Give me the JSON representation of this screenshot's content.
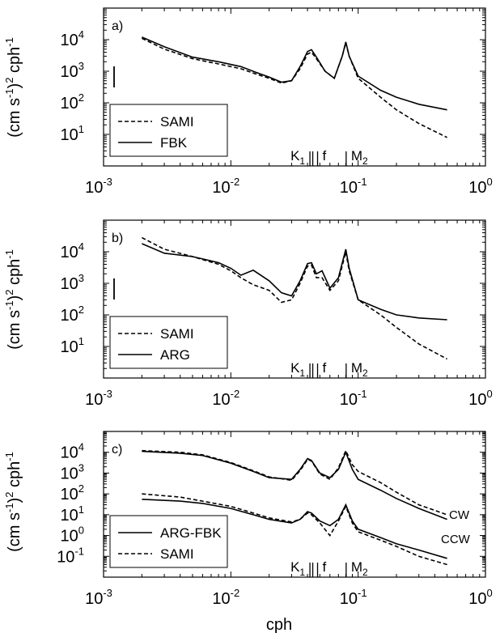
{
  "figure": {
    "xlabel": "cph",
    "ylabel_main": "(cm s",
    "ylabel_sup1": "-1",
    "ylabel_mid": ")",
    "ylabel_sup2": "2",
    "ylabel_end": " cph",
    "ylabel_sup3": "-1"
  },
  "chart_data": [
    {
      "panel": "a)",
      "type": "line",
      "xscale": "log",
      "yscale": "log",
      "xlim": [
        0.001,
        1
      ],
      "ylim_decades": [
        0,
        5
      ],
      "x_ticks": [
        "10",
        "10",
        "10",
        "10"
      ],
      "x_tick_exps": [
        "-3",
        "-2",
        "-1",
        "0"
      ],
      "y_ticks": [
        "10",
        "10",
        "10",
        "10"
      ],
      "y_tick_exps": [
        "1",
        "2",
        "3",
        "4"
      ],
      "legend": [
        {
          "label": "SAMI",
          "style": "dashed"
        },
        {
          "label": "FBK",
          "style": "solid"
        }
      ],
      "tidal_labels": [
        "K",
        "1",
        "f",
        "M",
        "2"
      ],
      "series": [
        {
          "name": "SAMI",
          "style": "dashed",
          "x": [
            0.002,
            0.003,
            0.005,
            0.008,
            0.012,
            0.016,
            0.02,
            0.025,
            0.03,
            0.035,
            0.04,
            0.043,
            0.047,
            0.055,
            0.065,
            0.075,
            0.08,
            0.085,
            0.1,
            0.15,
            0.2,
            0.3,
            0.5
          ],
          "y": [
            11000,
            5000,
            2500,
            1700,
            1200,
            800,
            600,
            420,
            500,
            1200,
            3500,
            4000,
            2500,
            1000,
            600,
            3000,
            8000,
            3000,
            600,
            150,
            60,
            22,
            8
          ]
        },
        {
          "name": "FBK",
          "style": "solid",
          "x": [
            0.002,
            0.003,
            0.005,
            0.008,
            0.012,
            0.016,
            0.02,
            0.025,
            0.03,
            0.035,
            0.04,
            0.043,
            0.047,
            0.055,
            0.065,
            0.075,
            0.08,
            0.085,
            0.1,
            0.15,
            0.2,
            0.3,
            0.5
          ],
          "y": [
            12000,
            6000,
            2800,
            2000,
            1400,
            900,
            650,
            450,
            500,
            1400,
            4200,
            4800,
            2800,
            1000,
            600,
            3000,
            8500,
            3000,
            700,
            250,
            150,
            90,
            60
          ]
        }
      ]
    },
    {
      "panel": "b)",
      "type": "line",
      "xscale": "log",
      "yscale": "log",
      "xlim": [
        0.001,
        1
      ],
      "ylim_decades": [
        0,
        5
      ],
      "x_ticks": [
        "10",
        "10",
        "10",
        "10"
      ],
      "x_tick_exps": [
        "-3",
        "-2",
        "-1",
        "0"
      ],
      "y_ticks": [
        "10",
        "10",
        "10",
        "10"
      ],
      "y_tick_exps": [
        "1",
        "2",
        "3",
        "4"
      ],
      "legend": [
        {
          "label": "SAMI",
          "style": "dashed"
        },
        {
          "label": "ARG",
          "style": "solid"
        }
      ],
      "tidal_labels": [
        "K",
        "1",
        "f",
        "M",
        "2"
      ],
      "series": [
        {
          "name": "SAMI",
          "style": "dashed",
          "x": [
            0.002,
            0.003,
            0.005,
            0.008,
            0.01,
            0.012,
            0.015,
            0.02,
            0.025,
            0.03,
            0.035,
            0.04,
            0.043,
            0.047,
            0.052,
            0.06,
            0.07,
            0.08,
            0.085,
            0.1,
            0.15,
            0.2,
            0.3,
            0.5
          ],
          "y": [
            28000,
            12000,
            7000,
            4000,
            2500,
            1500,
            900,
            600,
            250,
            300,
            1000,
            3500,
            3800,
            1500,
            1500,
            600,
            1200,
            10000,
            2500,
            300,
            100,
            40,
            12,
            4
          ]
        },
        {
          "name": "ARG",
          "style": "solid",
          "x": [
            0.002,
            0.003,
            0.005,
            0.008,
            0.01,
            0.012,
            0.015,
            0.02,
            0.025,
            0.03,
            0.035,
            0.04,
            0.043,
            0.047,
            0.052,
            0.06,
            0.07,
            0.08,
            0.085,
            0.1,
            0.15,
            0.2,
            0.3,
            0.5
          ],
          "y": [
            18000,
            9000,
            7000,
            4500,
            3000,
            1800,
            2600,
            1200,
            500,
            400,
            1200,
            4200,
            4500,
            2000,
            2500,
            700,
            1500,
            12000,
            3000,
            300,
            150,
            100,
            80,
            70
          ]
        }
      ]
    },
    {
      "panel": "c)",
      "type": "line",
      "xscale": "log",
      "yscale": "log",
      "xlim": [
        0.001,
        1
      ],
      "ylim_decades": [
        -2,
        5
      ],
      "x_ticks": [
        "10",
        "10",
        "10",
        "10"
      ],
      "x_tick_exps": [
        "-3",
        "-2",
        "-1",
        "0"
      ],
      "y_ticks": [
        "10",
        "10",
        "10",
        "10",
        "10",
        "10"
      ],
      "y_tick_exps": [
        "-1",
        "0",
        "1",
        "2",
        "3",
        "4"
      ],
      "legend": [
        {
          "label": "ARG-FBK",
          "style": "solid"
        },
        {
          "label": "SAMI",
          "style": "dashed"
        }
      ],
      "series_labels": [
        "CW",
        "CCW"
      ],
      "tidal_labels": [
        "K",
        "1",
        "f",
        "M",
        "2"
      ],
      "series": [
        {
          "name": "ARG-FBK CW",
          "style": "solid",
          "x": [
            0.002,
            0.004,
            0.006,
            0.01,
            0.015,
            0.02,
            0.03,
            0.035,
            0.04,
            0.043,
            0.05,
            0.06,
            0.07,
            0.08,
            0.09,
            0.1,
            0.15,
            0.2,
            0.3,
            0.5
          ],
          "y": [
            11000,
            9000,
            7000,
            3000,
            1200,
            600,
            500,
            1500,
            5000,
            4000,
            1000,
            600,
            1500,
            10000,
            1500,
            500,
            150,
            60,
            20,
            6
          ]
        },
        {
          "name": "SAMI CW",
          "style": "dashed",
          "x": [
            0.002,
            0.004,
            0.006,
            0.01,
            0.015,
            0.02,
            0.03,
            0.035,
            0.04,
            0.043,
            0.05,
            0.06,
            0.07,
            0.08,
            0.09,
            0.1,
            0.15,
            0.2,
            0.3,
            0.5
          ],
          "y": [
            12000,
            10000,
            7500,
            3200,
            1300,
            650,
            450,
            1300,
            4500,
            3800,
            900,
            500,
            1800,
            12000,
            2500,
            1200,
            350,
            120,
            30,
            10
          ]
        },
        {
          "name": "ARG-FBK CCW",
          "style": "solid",
          "x": [
            0.002,
            0.004,
            0.006,
            0.01,
            0.015,
            0.02,
            0.03,
            0.035,
            0.04,
            0.043,
            0.05,
            0.06,
            0.07,
            0.08,
            0.09,
            0.1,
            0.15,
            0.2,
            0.3,
            0.5
          ],
          "y": [
            55,
            45,
            35,
            20,
            10,
            6,
            4,
            6,
            14,
            12,
            5,
            3,
            6,
            30,
            5,
            2,
            0.8,
            0.4,
            0.2,
            0.08
          ]
        },
        {
          "name": "SAMI CCW",
          "style": "dashed",
          "x": [
            0.002,
            0.004,
            0.006,
            0.01,
            0.015,
            0.02,
            0.03,
            0.035,
            0.04,
            0.043,
            0.05,
            0.06,
            0.07,
            0.08,
            0.09,
            0.1,
            0.15,
            0.2,
            0.3,
            0.5
          ],
          "y": [
            100,
            70,
            45,
            25,
            12,
            7,
            4.5,
            6,
            12,
            10,
            4,
            1,
            5,
            25,
            4,
            1.5,
            0.6,
            0.3,
            0.1,
            0.04
          ]
        }
      ]
    }
  ]
}
